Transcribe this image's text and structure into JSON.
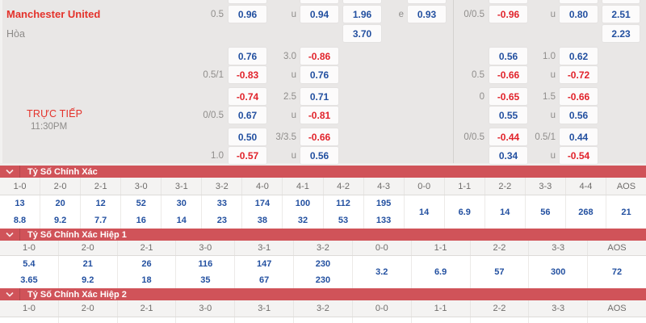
{
  "colors": {
    "odds_positive_blue": "#2350a0",
    "odds_negative_red": "#e1232b",
    "line_label_gray": "#8f8d8b",
    "team_red": "#e4322b",
    "muted_gray": "#8d8b89",
    "section_bar_red": "#d05359",
    "panel_bg": "#e9e7e6"
  },
  "odds_panel": {
    "home_team": "Manchester United",
    "draw_label": "Hòa",
    "live_label": "TRỰC TIẾP",
    "kickoff_time": "11:30PM",
    "rows": [
      {
        "cells": [
          {
            "col": "l_hdp_lab",
            "text": "0.5"
          },
          {
            "col": "l_hdp_box",
            "text": "0.96"
          },
          {
            "col": "l_ou_lab",
            "text": "u"
          },
          {
            "col": "l_ou_box",
            "text": "0.94"
          },
          {
            "col": "l_1x2_box",
            "text": "1.96"
          },
          {
            "col": "l_e_lab",
            "text": "e"
          },
          {
            "col": "l_e_box",
            "text": "0.93"
          },
          {
            "col": "r_hdp_lab",
            "text": "0/0.5"
          },
          {
            "col": "r_hdp_box",
            "text": "-0.96"
          },
          {
            "col": "r_ou_lab",
            "text": "u"
          },
          {
            "col": "r_ou_box",
            "text": "0.80"
          },
          {
            "col": "r_1x2_box",
            "text": "2.51"
          }
        ]
      },
      {
        "cells": [
          {
            "col": "l_1x2_box",
            "text": "3.70"
          },
          {
            "col": "r_1x2_box",
            "text": "2.23"
          }
        ]
      },
      {
        "cells": [
          {
            "col": "l_hdp_box",
            "text": "0.76"
          },
          {
            "col": "l_ou_lab",
            "text": "3.0"
          },
          {
            "col": "l_ou_box",
            "text": "-0.86"
          },
          {
            "col": "r_hdp_box",
            "text": "0.56"
          },
          {
            "col": "r_ou_lab",
            "text": "1.0"
          },
          {
            "col": "r_ou_box",
            "text": "0.62"
          }
        ]
      },
      {
        "cells": [
          {
            "col": "l_hdp_lab",
            "text": "0.5/1"
          },
          {
            "col": "l_hdp_box",
            "text": "-0.83"
          },
          {
            "col": "l_ou_lab",
            "text": "u"
          },
          {
            "col": "l_ou_box",
            "text": "0.76"
          },
          {
            "col": "r_hdp_lab",
            "text": "0.5"
          },
          {
            "col": "r_hdp_box",
            "text": "-0.66"
          },
          {
            "col": "r_ou_lab",
            "text": "u"
          },
          {
            "col": "r_ou_box",
            "text": "-0.72"
          }
        ]
      },
      {
        "cells": [
          {
            "col": "l_hdp_box",
            "text": "-0.74"
          },
          {
            "col": "l_ou_lab",
            "text": "2.5"
          },
          {
            "col": "l_ou_box",
            "text": "0.71"
          },
          {
            "col": "r_hdp_lab",
            "text": "0"
          },
          {
            "col": "r_hdp_box",
            "text": "-0.65"
          },
          {
            "col": "r_ou_lab",
            "text": "1.5"
          },
          {
            "col": "r_ou_box",
            "text": "-0.66"
          }
        ]
      },
      {
        "cells": [
          {
            "col": "l_hdp_lab",
            "text": "0/0.5"
          },
          {
            "col": "l_hdp_box",
            "text": "0.67"
          },
          {
            "col": "l_ou_lab",
            "text": "u"
          },
          {
            "col": "l_ou_box",
            "text": "-0.81"
          },
          {
            "col": "r_hdp_box",
            "text": "0.55"
          },
          {
            "col": "r_ou_lab",
            "text": "u"
          },
          {
            "col": "r_ou_box",
            "text": "0.56"
          }
        ]
      },
      {
        "cells": [
          {
            "col": "l_hdp_box",
            "text": "0.50"
          },
          {
            "col": "l_ou_lab",
            "text": "3/3.5"
          },
          {
            "col": "l_ou_box",
            "text": "-0.66"
          },
          {
            "col": "r_hdp_lab",
            "text": "0/0.5"
          },
          {
            "col": "r_hdp_box",
            "text": "-0.44"
          },
          {
            "col": "r_ou_lab",
            "text": "0.5/1"
          },
          {
            "col": "r_ou_box",
            "text": "0.44"
          }
        ]
      },
      {
        "cells": [
          {
            "col": "l_hdp_lab",
            "text": "1.0"
          },
          {
            "col": "l_hdp_box",
            "text": "-0.57"
          },
          {
            "col": "l_ou_lab",
            "text": "u"
          },
          {
            "col": "l_ou_box",
            "text": "0.56"
          },
          {
            "col": "r_hdp_box",
            "text": "0.34"
          },
          {
            "col": "r_ou_lab",
            "text": "u"
          },
          {
            "col": "r_ou_box",
            "text": "-0.54"
          }
        ]
      }
    ]
  },
  "score_sections": [
    {
      "title": "Tỷ Số Chính Xác",
      "columns": [
        {
          "score": "1-0",
          "odds": [
            "13",
            "8.8"
          ]
        },
        {
          "score": "2-0",
          "odds": [
            "20",
            "9.2"
          ]
        },
        {
          "score": "2-1",
          "odds": [
            "12",
            "7.7"
          ]
        },
        {
          "score": "3-0",
          "odds": [
            "52",
            "16"
          ]
        },
        {
          "score": "3-1",
          "odds": [
            "30",
            "14"
          ]
        },
        {
          "score": "3-2",
          "odds": [
            "33",
            "23"
          ]
        },
        {
          "score": "4-0",
          "odds": [
            "174",
            "38"
          ]
        },
        {
          "score": "4-1",
          "odds": [
            "100",
            "32"
          ]
        },
        {
          "score": "4-2",
          "odds": [
            "112",
            "53"
          ]
        },
        {
          "score": "4-3",
          "odds": [
            "195",
            "133"
          ]
        },
        {
          "score": "0-0",
          "odds": [
            "14"
          ]
        },
        {
          "score": "1-1",
          "odds": [
            "6.9"
          ]
        },
        {
          "score": "2-2",
          "odds": [
            "14"
          ]
        },
        {
          "score": "3-3",
          "odds": [
            "56"
          ]
        },
        {
          "score": "4-4",
          "odds": [
            "268"
          ]
        },
        {
          "score": "AOS",
          "odds": [
            "21"
          ]
        }
      ]
    },
    {
      "title": "Tỷ Số Chính Xác Hiệp 1",
      "columns": [
        {
          "score": "1-0",
          "odds": [
            "5.4",
            "3.65"
          ]
        },
        {
          "score": "2-0",
          "odds": [
            "21",
            "9.2"
          ]
        },
        {
          "score": "2-1",
          "odds": [
            "26",
            "18"
          ]
        },
        {
          "score": "3-0",
          "odds": [
            "116",
            "35"
          ]
        },
        {
          "score": "3-1",
          "odds": [
            "147",
            "67"
          ]
        },
        {
          "score": "3-2",
          "odds": [
            "230",
            "230"
          ]
        },
        {
          "score": "0-0",
          "odds": [
            "3.2"
          ]
        },
        {
          "score": "1-1",
          "odds": [
            "6.9"
          ]
        },
        {
          "score": "2-2",
          "odds": [
            "57"
          ]
        },
        {
          "score": "3-3",
          "odds": [
            "300"
          ]
        },
        {
          "score": "AOS",
          "odds": [
            "72"
          ]
        }
      ]
    },
    {
      "title": "Tỷ Số Chính Xác Hiệp 2",
      "columns": [
        {
          "score": "1-0",
          "odds": []
        },
        {
          "score": "2-0",
          "odds": []
        },
        {
          "score": "2-1",
          "odds": []
        },
        {
          "score": "3-0",
          "odds": []
        },
        {
          "score": "3-1",
          "odds": []
        },
        {
          "score": "3-2",
          "odds": []
        },
        {
          "score": "0-0",
          "odds": []
        },
        {
          "score": "1-1",
          "odds": []
        },
        {
          "score": "2-2",
          "odds": []
        },
        {
          "score": "3-3",
          "odds": []
        },
        {
          "score": "AOS",
          "odds": []
        }
      ]
    }
  ]
}
